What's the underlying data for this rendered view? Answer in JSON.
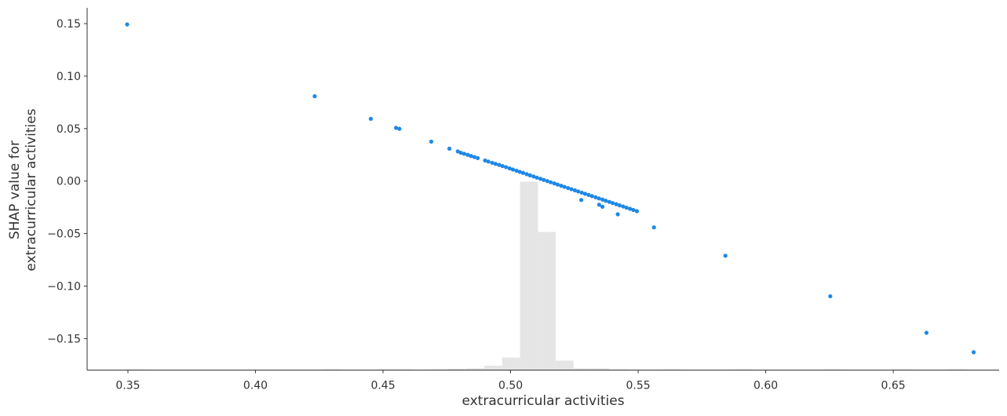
{
  "chart_data": {
    "type": "scatter",
    "title": "",
    "xlabel": "extracurricular activities",
    "ylabel": [
      "SHAP value for",
      "extracurricular activities"
    ],
    "xlim": [
      0.334,
      0.6915
    ],
    "ylim": [
      -0.18,
      0.165
    ],
    "x_ticks": [
      {
        "value": 0.35,
        "label": "0.35"
      },
      {
        "value": 0.4,
        "label": "0.40"
      },
      {
        "value": 0.45,
        "label": "0.45"
      },
      {
        "value": 0.5,
        "label": "0.50"
      },
      {
        "value": 0.55,
        "label": "0.55"
      },
      {
        "value": 0.6,
        "label": "0.60"
      },
      {
        "value": 0.65,
        "label": "0.65"
      }
    ],
    "y_ticks": [
      {
        "value": 0.15,
        "label": "0.15"
      },
      {
        "value": 0.1,
        "label": "0.10"
      },
      {
        "value": 0.05,
        "label": "0.05"
      },
      {
        "value": 0.0,
        "label": "0.00"
      },
      {
        "value": -0.05,
        "label": "−0.05"
      },
      {
        "value": -0.1,
        "label": "−0.10"
      },
      {
        "value": -0.15,
        "label": "−0.15"
      }
    ],
    "grid": false,
    "point_color": "#1e88e5",
    "histogram_color": "#e5e5e5",
    "series": [
      {
        "points": [
          [
            0.3497,
            0.1492
          ],
          [
            0.4232,
            0.0808
          ],
          [
            0.4452,
            0.0593
          ],
          [
            0.4551,
            0.0507
          ],
          [
            0.4564,
            0.0498
          ],
          [
            0.4689,
            0.0376
          ],
          [
            0.476,
            0.0309
          ],
          [
            0.4793,
            0.0283
          ],
          [
            0.4805,
            0.027
          ],
          [
            0.4818,
            0.026
          ],
          [
            0.4832,
            0.025
          ],
          [
            0.4845,
            0.0239
          ],
          [
            0.4858,
            0.0229
          ],
          [
            0.4871,
            0.0219
          ],
          [
            0.49,
            0.0196
          ],
          [
            0.4913,
            0.0186
          ],
          [
            0.4928,
            0.0174
          ],
          [
            0.4941,
            0.0164
          ],
          [
            0.4955,
            0.0154
          ],
          [
            0.4968,
            0.0143
          ],
          [
            0.4982,
            0.0133
          ],
          [
            0.4996,
            0.0121
          ],
          [
            0.5009,
            0.011
          ],
          [
            0.5023,
            0.0099
          ],
          [
            0.5036,
            0.0088
          ],
          [
            0.5049,
            0.0078
          ],
          [
            0.5063,
            0.0066
          ],
          [
            0.5076,
            0.0055
          ],
          [
            0.509,
            0.0044
          ],
          [
            0.5103,
            0.0033
          ],
          [
            0.5117,
            0.0022
          ],
          [
            0.513,
            0.0011
          ],
          [
            0.5144,
            0.0
          ],
          [
            0.5157,
            -0.0011
          ],
          [
            0.5171,
            -0.0022
          ],
          [
            0.5184,
            -0.0033
          ],
          [
            0.5198,
            -0.0044
          ],
          [
            0.5211,
            -0.0055
          ],
          [
            0.5225,
            -0.0066
          ],
          [
            0.5238,
            -0.0077
          ],
          [
            0.5252,
            -0.0088
          ],
          [
            0.5265,
            -0.0099
          ],
          [
            0.5279,
            -0.011
          ],
          [
            0.5292,
            -0.0121
          ],
          [
            0.5306,
            -0.0132
          ],
          [
            0.5319,
            -0.0143
          ],
          [
            0.5333,
            -0.0154
          ],
          [
            0.5346,
            -0.0165
          ],
          [
            0.536,
            -0.0176
          ],
          [
            0.5373,
            -0.0187
          ],
          [
            0.5387,
            -0.0198
          ],
          [
            0.54,
            -0.0209
          ],
          [
            0.5414,
            -0.022
          ],
          [
            0.5427,
            -0.0231
          ],
          [
            0.5441,
            -0.0242
          ],
          [
            0.5454,
            -0.0253
          ],
          [
            0.5468,
            -0.0264
          ],
          [
            0.5481,
            -0.0275
          ],
          [
            0.5495,
            -0.0286
          ],
          [
            0.5277,
            -0.018
          ],
          [
            0.5347,
            -0.0225
          ],
          [
            0.536,
            -0.0244
          ],
          [
            0.542,
            -0.0316
          ],
          [
            0.5562,
            -0.0441
          ],
          [
            0.5842,
            -0.0711
          ],
          [
            0.6253,
            -0.1097
          ],
          [
            0.663,
            -0.1445
          ],
          [
            0.6815,
            -0.163
          ]
        ]
      }
    ],
    "histogram": {
      "bin_edges": [
        0.3497,
        0.3567,
        0.3637,
        0.3707,
        0.3777,
        0.3847,
        0.3917,
        0.3987,
        0.4057,
        0.4127,
        0.4197,
        0.4267,
        0.4337,
        0.4407,
        0.4477,
        0.4547,
        0.4617,
        0.4687,
        0.4757,
        0.4827,
        0.4897,
        0.4967,
        0.5037,
        0.5107,
        0.5177,
        0.5247,
        0.5317,
        0.5387,
        0.5457,
        0.5527,
        0.5597,
        0.5667,
        0.5737,
        0.5807,
        0.5877,
        0.5947,
        0.6017,
        0.6087,
        0.6157,
        0.6227,
        0.6297,
        0.6367,
        0.6437,
        0.6507,
        0.6577,
        0.6647,
        0.6717,
        0.6787
      ],
      "counts": [
        1,
        0,
        0,
        0,
        0,
        0,
        0,
        0,
        0,
        0,
        0,
        1,
        0,
        0,
        1,
        1,
        0,
        1,
        2,
        3,
        7,
        20,
        300,
        220,
        15,
        3,
        3,
        1,
        0,
        0,
        1,
        0,
        0,
        0,
        1,
        0,
        0,
        0,
        0,
        1,
        0,
        0,
        0,
        1,
        0,
        0,
        1
      ]
    }
  }
}
